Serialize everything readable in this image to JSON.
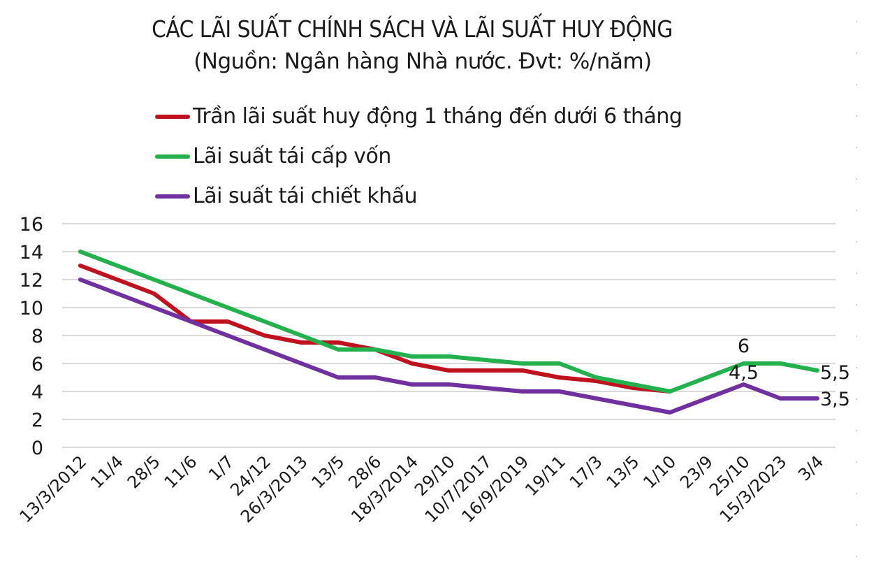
{
  "chart_data": {
    "type": "line",
    "title": "CÁC LÃI SUẤT CHÍNH SÁCH VÀ LÃI SUẤT HUY ĐỘNG",
    "subtitle": "(Nguồn: Ngân hàng Nhà nước. Đvt: %/năm)",
    "xlabel": "",
    "ylabel": "",
    "ylim": [
      0,
      16
    ],
    "yticks": [
      0,
      2,
      4,
      6,
      8,
      10,
      12,
      14,
      16
    ],
    "grid": true,
    "legend_position": "top",
    "categories": [
      "13/3/2012",
      "11/4",
      "28/5",
      "11/6",
      "1/7",
      "24/12",
      "26/3/2013",
      "13/5",
      "28/6",
      "18/3/2014",
      "29/10",
      "10/7/2017",
      "16/9/2019",
      "19/11",
      "17/3",
      "13/5",
      "1/10",
      "23/9",
      "25/10",
      "15/3/2023",
      "3/4"
    ],
    "series": [
      {
        "name": "Trần lãi suất huy động 1 tháng đến dưới 6 tháng",
        "color": "#c0111f",
        "values": [
          13,
          12,
          11,
          9,
          9,
          8,
          7.5,
          7.5,
          7,
          6,
          5.5,
          5.5,
          5.5,
          5,
          4.75,
          4.25,
          4,
          null,
          null,
          null,
          null
        ]
      },
      {
        "name": "Lãi suất tái cấp vốn",
        "color": "#22b14c",
        "values": [
          14,
          13,
          12,
          11,
          10,
          9,
          8,
          7,
          7,
          6.5,
          6.5,
          6.25,
          6,
          6,
          5,
          4.5,
          4,
          5,
          6,
          6,
          5.5
        ]
      },
      {
        "name": "Lãi suất tái chiết khấu",
        "color": "#7030a0",
        "values": [
          12,
          11,
          10,
          9,
          8,
          7,
          6,
          5,
          5,
          4.5,
          4.5,
          4.25,
          4,
          4,
          3.5,
          3,
          2.5,
          3.5,
          4.5,
          3.5,
          3.5
        ]
      }
    ],
    "annotations": [
      {
        "series": "Lãi suất tái cấp vốn",
        "category_index": 18,
        "text": "6"
      },
      {
        "series": "Lãi suất tái chiết khấu",
        "category_index": 18,
        "text": "4,5"
      },
      {
        "series": "Lãi suất tái cấp vốn",
        "category_index": 20,
        "text": "5,5"
      },
      {
        "series": "Lãi suất tái chiết khấu",
        "category_index": 20,
        "text": "3,5"
      }
    ]
  }
}
